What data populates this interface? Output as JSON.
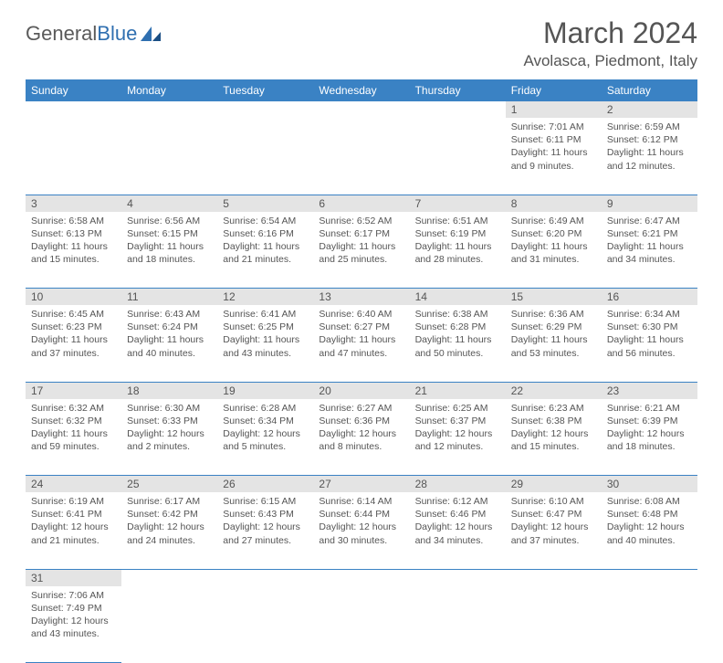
{
  "logo": {
    "textA": "General",
    "textB": "Blue"
  },
  "title": "March 2024",
  "location": "Avolasca, Piedmont, Italy",
  "colors": {
    "headerBg": "#3a82c4",
    "dayBg": "#e4e4e4",
    "text": "#555555",
    "rule": "#3a82c4"
  },
  "font": {
    "family": "Arial",
    "title_size": 32,
    "location_size": 17,
    "header_size": 12,
    "daynum_size": 12,
    "body_size": 10.5
  },
  "dayHeaders": [
    "Sunday",
    "Monday",
    "Tuesday",
    "Wednesday",
    "Thursday",
    "Friday",
    "Saturday"
  ],
  "weeks": [
    [
      null,
      null,
      null,
      null,
      null,
      {
        "n": "1",
        "sunrise": "Sunrise: 7:01 AM",
        "sunset": "Sunset: 6:11 PM",
        "daylight": "Daylight: 11 hours and 9 minutes."
      },
      {
        "n": "2",
        "sunrise": "Sunrise: 6:59 AM",
        "sunset": "Sunset: 6:12 PM",
        "daylight": "Daylight: 11 hours and 12 minutes."
      }
    ],
    [
      {
        "n": "3",
        "sunrise": "Sunrise: 6:58 AM",
        "sunset": "Sunset: 6:13 PM",
        "daylight": "Daylight: 11 hours and 15 minutes."
      },
      {
        "n": "4",
        "sunrise": "Sunrise: 6:56 AM",
        "sunset": "Sunset: 6:15 PM",
        "daylight": "Daylight: 11 hours and 18 minutes."
      },
      {
        "n": "5",
        "sunrise": "Sunrise: 6:54 AM",
        "sunset": "Sunset: 6:16 PM",
        "daylight": "Daylight: 11 hours and 21 minutes."
      },
      {
        "n": "6",
        "sunrise": "Sunrise: 6:52 AM",
        "sunset": "Sunset: 6:17 PM",
        "daylight": "Daylight: 11 hours and 25 minutes."
      },
      {
        "n": "7",
        "sunrise": "Sunrise: 6:51 AM",
        "sunset": "Sunset: 6:19 PM",
        "daylight": "Daylight: 11 hours and 28 minutes."
      },
      {
        "n": "8",
        "sunrise": "Sunrise: 6:49 AM",
        "sunset": "Sunset: 6:20 PM",
        "daylight": "Daylight: 11 hours and 31 minutes."
      },
      {
        "n": "9",
        "sunrise": "Sunrise: 6:47 AM",
        "sunset": "Sunset: 6:21 PM",
        "daylight": "Daylight: 11 hours and 34 minutes."
      }
    ],
    [
      {
        "n": "10",
        "sunrise": "Sunrise: 6:45 AM",
        "sunset": "Sunset: 6:23 PM",
        "daylight": "Daylight: 11 hours and 37 minutes."
      },
      {
        "n": "11",
        "sunrise": "Sunrise: 6:43 AM",
        "sunset": "Sunset: 6:24 PM",
        "daylight": "Daylight: 11 hours and 40 minutes."
      },
      {
        "n": "12",
        "sunrise": "Sunrise: 6:41 AM",
        "sunset": "Sunset: 6:25 PM",
        "daylight": "Daylight: 11 hours and 43 minutes."
      },
      {
        "n": "13",
        "sunrise": "Sunrise: 6:40 AM",
        "sunset": "Sunset: 6:27 PM",
        "daylight": "Daylight: 11 hours and 47 minutes."
      },
      {
        "n": "14",
        "sunrise": "Sunrise: 6:38 AM",
        "sunset": "Sunset: 6:28 PM",
        "daylight": "Daylight: 11 hours and 50 minutes."
      },
      {
        "n": "15",
        "sunrise": "Sunrise: 6:36 AM",
        "sunset": "Sunset: 6:29 PM",
        "daylight": "Daylight: 11 hours and 53 minutes."
      },
      {
        "n": "16",
        "sunrise": "Sunrise: 6:34 AM",
        "sunset": "Sunset: 6:30 PM",
        "daylight": "Daylight: 11 hours and 56 minutes."
      }
    ],
    [
      {
        "n": "17",
        "sunrise": "Sunrise: 6:32 AM",
        "sunset": "Sunset: 6:32 PM",
        "daylight": "Daylight: 11 hours and 59 minutes."
      },
      {
        "n": "18",
        "sunrise": "Sunrise: 6:30 AM",
        "sunset": "Sunset: 6:33 PM",
        "daylight": "Daylight: 12 hours and 2 minutes."
      },
      {
        "n": "19",
        "sunrise": "Sunrise: 6:28 AM",
        "sunset": "Sunset: 6:34 PM",
        "daylight": "Daylight: 12 hours and 5 minutes."
      },
      {
        "n": "20",
        "sunrise": "Sunrise: 6:27 AM",
        "sunset": "Sunset: 6:36 PM",
        "daylight": "Daylight: 12 hours and 8 minutes."
      },
      {
        "n": "21",
        "sunrise": "Sunrise: 6:25 AM",
        "sunset": "Sunset: 6:37 PM",
        "daylight": "Daylight: 12 hours and 12 minutes."
      },
      {
        "n": "22",
        "sunrise": "Sunrise: 6:23 AM",
        "sunset": "Sunset: 6:38 PM",
        "daylight": "Daylight: 12 hours and 15 minutes."
      },
      {
        "n": "23",
        "sunrise": "Sunrise: 6:21 AM",
        "sunset": "Sunset: 6:39 PM",
        "daylight": "Daylight: 12 hours and 18 minutes."
      }
    ],
    [
      {
        "n": "24",
        "sunrise": "Sunrise: 6:19 AM",
        "sunset": "Sunset: 6:41 PM",
        "daylight": "Daylight: 12 hours and 21 minutes."
      },
      {
        "n": "25",
        "sunrise": "Sunrise: 6:17 AM",
        "sunset": "Sunset: 6:42 PM",
        "daylight": "Daylight: 12 hours and 24 minutes."
      },
      {
        "n": "26",
        "sunrise": "Sunrise: 6:15 AM",
        "sunset": "Sunset: 6:43 PM",
        "daylight": "Daylight: 12 hours and 27 minutes."
      },
      {
        "n": "27",
        "sunrise": "Sunrise: 6:14 AM",
        "sunset": "Sunset: 6:44 PM",
        "daylight": "Daylight: 12 hours and 30 minutes."
      },
      {
        "n": "28",
        "sunrise": "Sunrise: 6:12 AM",
        "sunset": "Sunset: 6:46 PM",
        "daylight": "Daylight: 12 hours and 34 minutes."
      },
      {
        "n": "29",
        "sunrise": "Sunrise: 6:10 AM",
        "sunset": "Sunset: 6:47 PM",
        "daylight": "Daylight: 12 hours and 37 minutes."
      },
      {
        "n": "30",
        "sunrise": "Sunrise: 6:08 AM",
        "sunset": "Sunset: 6:48 PM",
        "daylight": "Daylight: 12 hours and 40 minutes."
      }
    ],
    [
      {
        "n": "31",
        "sunrise": "Sunrise: 7:06 AM",
        "sunset": "Sunset: 7:49 PM",
        "daylight": "Daylight: 12 hours and 43 minutes."
      },
      null,
      null,
      null,
      null,
      null,
      null
    ]
  ]
}
